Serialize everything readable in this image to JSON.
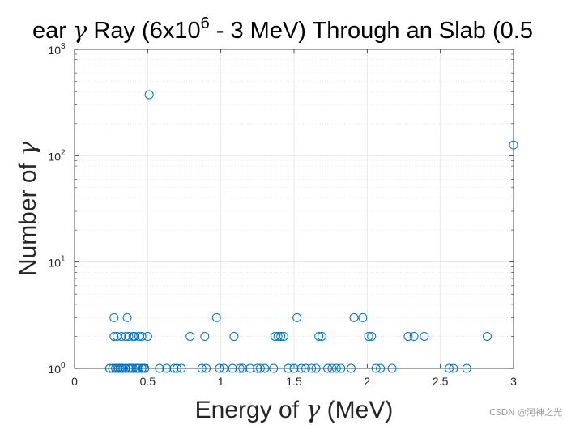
{
  "chart_data": {
    "type": "scatter",
    "title": "ear γ Ray (6x10^6 - 3 MeV) Through an Slab (0.5",
    "title_parts": {
      "pre": "ear ",
      "gamma": "γ",
      "mid": " Ray (6x10",
      "exp": "6",
      "post": " - 3 MeV) Through an Slab (0.5"
    },
    "xlabel": "Energy of γ (MeV)",
    "xlabel_parts": {
      "pre": "Energy of ",
      "gamma": "γ",
      "post": " (MeV)"
    },
    "ylabel": "Number of γ",
    "ylabel_parts": {
      "pre": "Number of ",
      "gamma": "γ"
    },
    "xlim": [
      0,
      3
    ],
    "ylim": [
      1,
      1000
    ],
    "yscale": "log",
    "grid": true,
    "minor_grid": true,
    "marker": "open-circle",
    "series_color": "#0072BD",
    "xticks": [
      {
        "v": 0,
        "label": "0"
      },
      {
        "v": 0.5,
        "label": "0.5"
      },
      {
        "v": 1,
        "label": "1"
      },
      {
        "v": 1.5,
        "label": "1.5"
      },
      {
        "v": 2,
        "label": "2"
      },
      {
        "v": 2.5,
        "label": "2.5"
      },
      {
        "v": 3,
        "label": "3"
      }
    ],
    "yticks": [
      {
        "v": 1,
        "base": "10",
        "exp": "0"
      },
      {
        "v": 10,
        "base": "10",
        "exp": "1"
      },
      {
        "v": 100,
        "base": "10",
        "exp": "2"
      },
      {
        "v": 1000,
        "base": "10",
        "exp": "3"
      }
    ],
    "points": [
      {
        "x": 0.24,
        "y": 1
      },
      {
        "x": 0.26,
        "y": 1
      },
      {
        "x": 0.28,
        "y": 1
      },
      {
        "x": 0.29,
        "y": 1
      },
      {
        "x": 0.3,
        "y": 1
      },
      {
        "x": 0.31,
        "y": 1
      },
      {
        "x": 0.32,
        "y": 1
      },
      {
        "x": 0.33,
        "y": 1
      },
      {
        "x": 0.35,
        "y": 1
      },
      {
        "x": 0.37,
        "y": 1
      },
      {
        "x": 0.38,
        "y": 1
      },
      {
        "x": 0.39,
        "y": 1
      },
      {
        "x": 0.4,
        "y": 1
      },
      {
        "x": 0.42,
        "y": 1
      },
      {
        "x": 0.43,
        "y": 1
      },
      {
        "x": 0.44,
        "y": 1
      },
      {
        "x": 0.46,
        "y": 1
      },
      {
        "x": 0.47,
        "y": 1
      },
      {
        "x": 0.48,
        "y": 1
      },
      {
        "x": 0.58,
        "y": 1
      },
      {
        "x": 0.63,
        "y": 1
      },
      {
        "x": 0.68,
        "y": 1
      },
      {
        "x": 0.7,
        "y": 1
      },
      {
        "x": 0.73,
        "y": 1
      },
      {
        "x": 0.87,
        "y": 1
      },
      {
        "x": 0.9,
        "y": 1
      },
      {
        "x": 0.99,
        "y": 1
      },
      {
        "x": 1.02,
        "y": 1
      },
      {
        "x": 1.08,
        "y": 1
      },
      {
        "x": 1.13,
        "y": 1
      },
      {
        "x": 1.15,
        "y": 1
      },
      {
        "x": 1.2,
        "y": 1
      },
      {
        "x": 1.25,
        "y": 1
      },
      {
        "x": 1.27,
        "y": 1
      },
      {
        "x": 1.3,
        "y": 1
      },
      {
        "x": 1.36,
        "y": 1
      },
      {
        "x": 1.46,
        "y": 1
      },
      {
        "x": 1.5,
        "y": 1
      },
      {
        "x": 1.55,
        "y": 1
      },
      {
        "x": 1.58,
        "y": 1
      },
      {
        "x": 1.62,
        "y": 1
      },
      {
        "x": 1.65,
        "y": 1
      },
      {
        "x": 1.73,
        "y": 1
      },
      {
        "x": 1.76,
        "y": 1
      },
      {
        "x": 1.79,
        "y": 1
      },
      {
        "x": 1.82,
        "y": 1
      },
      {
        "x": 1.89,
        "y": 1
      },
      {
        "x": 2.06,
        "y": 1
      },
      {
        "x": 2.09,
        "y": 1
      },
      {
        "x": 2.17,
        "y": 1
      },
      {
        "x": 2.56,
        "y": 1
      },
      {
        "x": 2.59,
        "y": 1
      },
      {
        "x": 2.68,
        "y": 1
      },
      {
        "x": 0.27,
        "y": 2
      },
      {
        "x": 0.29,
        "y": 2
      },
      {
        "x": 0.32,
        "y": 2
      },
      {
        "x": 0.35,
        "y": 2
      },
      {
        "x": 0.37,
        "y": 2
      },
      {
        "x": 0.4,
        "y": 2
      },
      {
        "x": 0.41,
        "y": 2
      },
      {
        "x": 0.44,
        "y": 2
      },
      {
        "x": 0.46,
        "y": 2
      },
      {
        "x": 0.5,
        "y": 2
      },
      {
        "x": 0.79,
        "y": 2
      },
      {
        "x": 0.89,
        "y": 2
      },
      {
        "x": 1.09,
        "y": 2
      },
      {
        "x": 1.37,
        "y": 2
      },
      {
        "x": 1.39,
        "y": 2
      },
      {
        "x": 1.41,
        "y": 2
      },
      {
        "x": 1.43,
        "y": 2
      },
      {
        "x": 1.67,
        "y": 2
      },
      {
        "x": 1.69,
        "y": 2
      },
      {
        "x": 2.01,
        "y": 2
      },
      {
        "x": 2.03,
        "y": 2
      },
      {
        "x": 2.28,
        "y": 2
      },
      {
        "x": 2.32,
        "y": 2
      },
      {
        "x": 2.39,
        "y": 2
      },
      {
        "x": 2.82,
        "y": 2
      },
      {
        "x": 0.27,
        "y": 3
      },
      {
        "x": 0.36,
        "y": 3
      },
      {
        "x": 0.97,
        "y": 3
      },
      {
        "x": 1.52,
        "y": 3
      },
      {
        "x": 1.91,
        "y": 3
      },
      {
        "x": 1.97,
        "y": 3
      },
      {
        "x": 0.51,
        "y": 375
      },
      {
        "x": 3.0,
        "y": 126
      }
    ]
  },
  "watermark": "CSDN @河神之光"
}
